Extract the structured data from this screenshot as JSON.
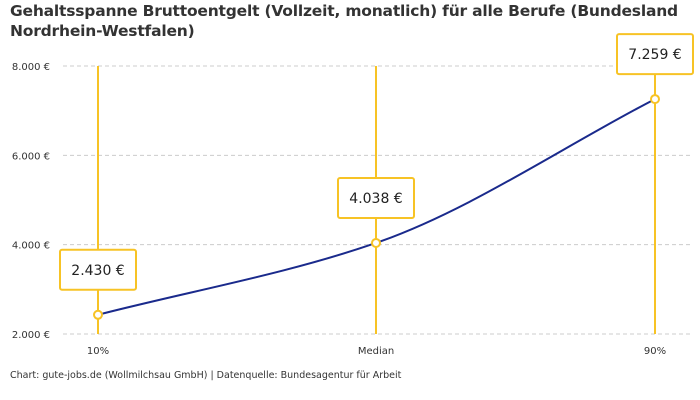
{
  "chart_data": {
    "type": "line",
    "title": "Gehaltsspanne Bruttoentgelt (Vollzeit, monatlich) für alle Berufe (Bundesland Nordrhein-Westfalen)",
    "categories": [
      "10%",
      "Median",
      "90%"
    ],
    "values": [
      2430,
      4038,
      7259
    ],
    "data_labels": [
      "2.430 €",
      "4.038 €",
      "7.259 €"
    ],
    "ylim": [
      2000,
      8000
    ],
    "yticks": [
      2000,
      4000,
      6000,
      8000
    ],
    "ytick_labels": [
      "2.000 €",
      "4.000 €",
      "6.000 €",
      "8.000 €"
    ],
    "grid": true,
    "colors": {
      "line": "#1a2a8c",
      "marker": "#f7c325",
      "grid": "#cccccc"
    }
  },
  "footer": "Chart: gute-jobs.de (Wollmilchsau GmbH) | Datenquelle: Bundesagentur für Arbeit"
}
